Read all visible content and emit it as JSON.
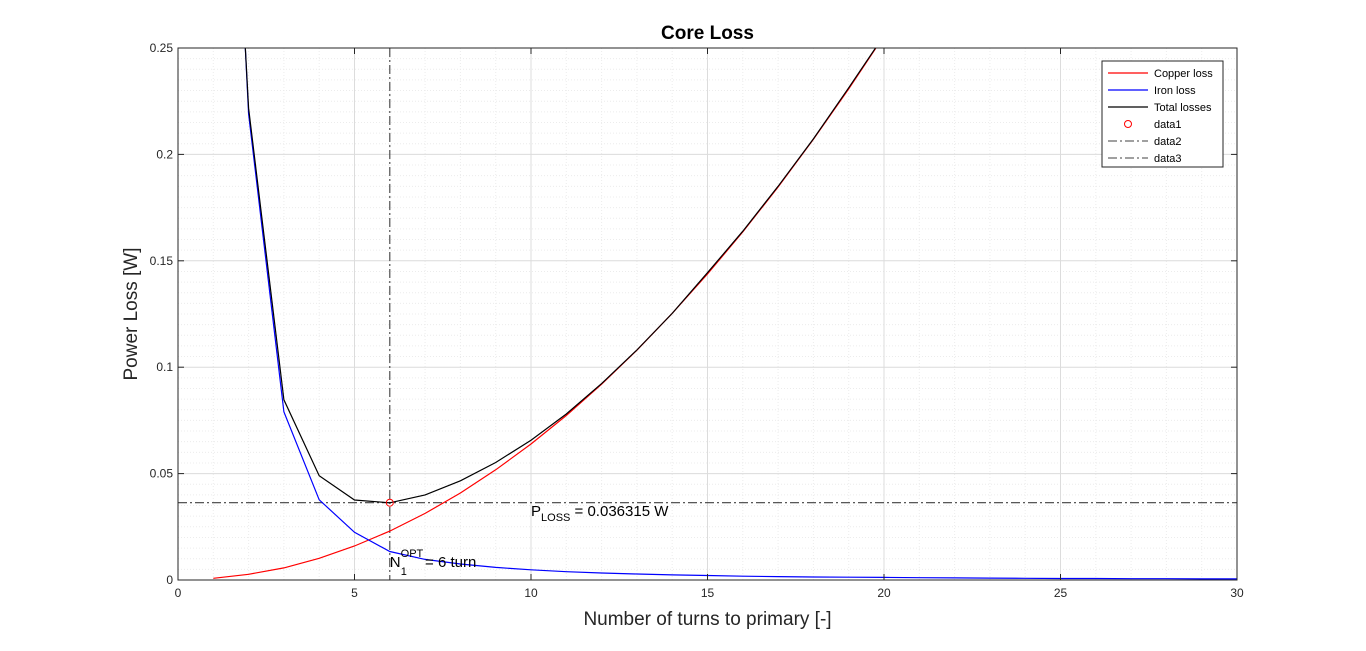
{
  "chart_data": {
    "type": "line",
    "title": "Core Loss",
    "xlabel": "Number of turns to primary [-]",
    "ylabel": "Power Loss [W]",
    "xlim": [
      0,
      30
    ],
    "ylim": [
      0,
      0.25
    ],
    "xticks": [
      "0",
      "5",
      "10",
      "15",
      "20",
      "25",
      "30"
    ],
    "yticks": [
      "0",
      "0.05",
      "0.1",
      "0.15",
      "0.2",
      "0.25"
    ],
    "grid": "major-and-minor",
    "legend_position": "top-right",
    "series": [
      {
        "name": "Copper loss",
        "color": "#ff0000",
        "style": "solid",
        "x": [
          1,
          2,
          3,
          4,
          5,
          6,
          7,
          8,
          9,
          10,
          11,
          12,
          13,
          14,
          15,
          16,
          17,
          18,
          19,
          20
        ],
        "y": [
          0.0008,
          0.0027,
          0.0057,
          0.0102,
          0.016,
          0.023,
          0.0313,
          0.0409,
          0.0518,
          0.0639,
          0.0773,
          0.092,
          0.108,
          0.1253,
          0.1438,
          0.1636,
          0.1847,
          0.2071,
          0.2308,
          0.2557
        ]
      },
      {
        "name": "Iron loss",
        "color": "#0000ff",
        "style": "solid",
        "x": [
          1.9,
          2,
          3,
          4,
          5,
          6,
          7,
          8,
          9,
          10,
          11,
          12,
          13,
          14,
          15,
          16,
          17,
          18,
          19,
          20,
          21,
          22,
          23,
          24,
          25,
          26,
          27,
          28,
          29,
          30
        ],
        "y": [
          0.252,
          0.219,
          0.079,
          0.0377,
          0.0224,
          0.0134,
          0.0097,
          0.0075,
          0.0059,
          0.0048,
          0.0039,
          0.0033,
          0.0028,
          0.0024,
          0.0021,
          0.0018,
          0.0016,
          0.0014,
          0.0013,
          0.0012,
          0.0011,
          0.001,
          0.0009,
          0.0008,
          0.0007,
          0.0007,
          0.0006,
          0.0006,
          0.0005,
          0.0005
        ]
      },
      {
        "name": "Total losses",
        "color": "#000000",
        "style": "solid",
        "x": [
          1.9,
          2,
          3,
          4,
          5,
          6,
          7,
          8,
          9,
          10,
          11,
          12,
          13,
          14,
          15,
          16,
          17,
          18,
          19,
          20
        ],
        "y": [
          0.252,
          0.2217,
          0.0847,
          0.049,
          0.0376,
          0.0363,
          0.04,
          0.0466,
          0.0552,
          0.0657,
          0.078,
          0.0923,
          0.1081,
          0.1253,
          0.1444,
          0.1639,
          0.185,
          0.2073,
          0.2313,
          0.2559
        ]
      }
    ],
    "markers": [
      {
        "name": "data1",
        "x": 6,
        "y": 0.036315,
        "marker": "circle",
        "color": "#ff0000"
      }
    ],
    "reference_lines": [
      {
        "name": "data2",
        "orientation": "horizontal",
        "value": 0.036315,
        "style": "dashdot",
        "color": "#404040"
      },
      {
        "name": "data3",
        "orientation": "vertical",
        "value": 6,
        "style": "dashdot",
        "color": "#404040"
      }
    ],
    "legend": [
      "Copper loss",
      "Iron loss",
      "Total losses",
      "data1",
      "data2",
      "data3"
    ],
    "annotations": [
      {
        "main": "P",
        "sub": "LOSS",
        "sup": "",
        "rest": " = 0.036315 W",
        "x": 10,
        "y": 0.03
      },
      {
        "main": "N",
        "sub": "1",
        "sup": "OPT",
        "rest": " = 6 turn",
        "x": 6,
        "y": 0.006
      }
    ]
  }
}
